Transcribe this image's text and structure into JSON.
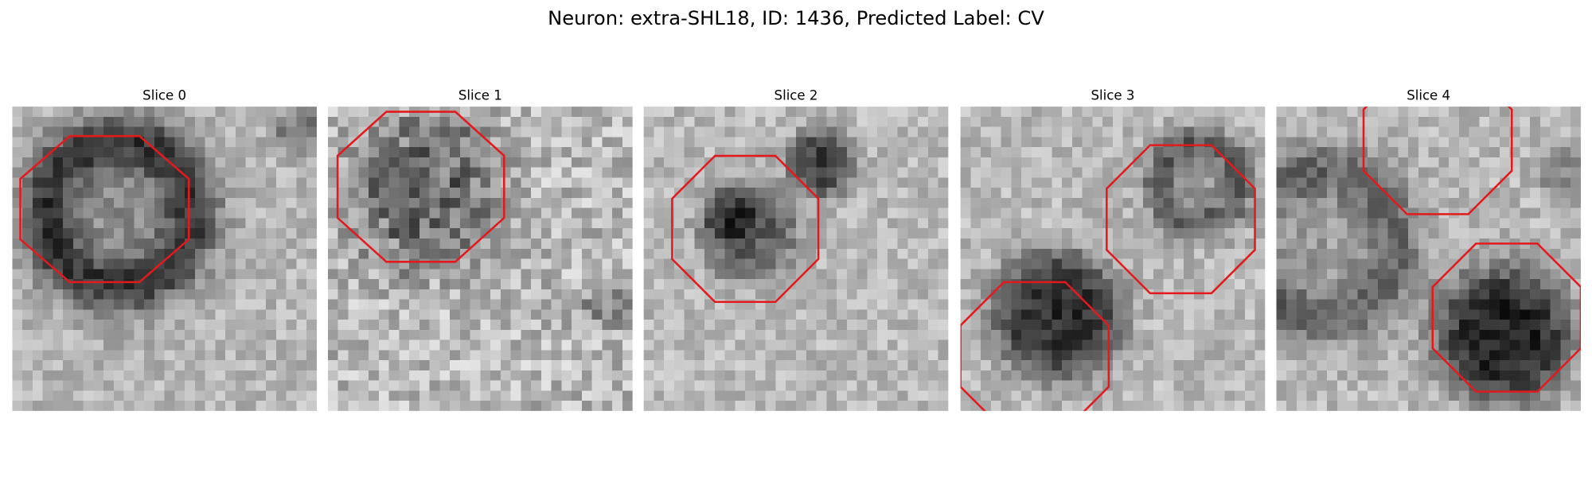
{
  "figure": {
    "title": "Neuron: extra-SHL18, ID: 1436, Predicted Label: CV",
    "panels": [
      {
        "title": "Slice 0"
      },
      {
        "title": "Slice 1"
      },
      {
        "title": "Slice 2"
      },
      {
        "title": "Slice 3"
      },
      {
        "title": "Slice 4"
      }
    ]
  }
}
